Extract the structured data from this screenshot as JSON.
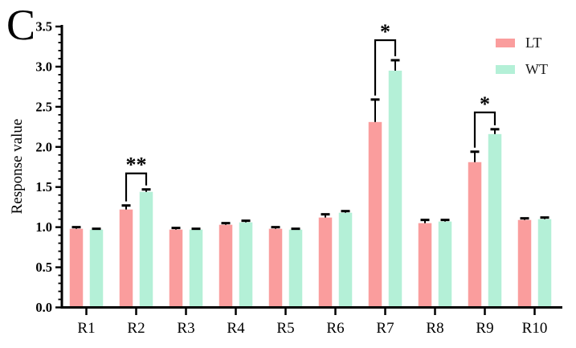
{
  "panel_label": "C",
  "legend": {
    "items": [
      {
        "label": "LT",
        "color": "#FA9D9D"
      },
      {
        "label": "WT",
        "color": "#B4F0D7"
      }
    ]
  },
  "chart_data": {
    "type": "bar",
    "title": "",
    "xlabel": "",
    "ylabel": "Response value",
    "ylim": [
      0,
      3.5
    ],
    "ytick_step": 0.5,
    "minor_tick_step": 0.1,
    "ytick_labels": [
      "0.0",
      "0.5",
      "1.0",
      "1.5",
      "2.0",
      "2.5",
      "3.0",
      "3.5"
    ],
    "grid": false,
    "legend_position": "top-right",
    "categories": [
      "R1",
      "R2",
      "R3",
      "R4",
      "R5",
      "R6",
      "R7",
      "R8",
      "R9",
      "R10"
    ],
    "series": [
      {
        "name": "LT",
        "color": "#FA9D9D",
        "values": [
          0.98,
          1.22,
          0.97,
          1.03,
          0.98,
          1.12,
          2.31,
          1.05,
          1.81,
          1.09
        ],
        "errors": [
          0.02,
          0.05,
          0.02,
          0.02,
          0.02,
          0.04,
          0.28,
          0.04,
          0.13,
          0.02
        ]
      },
      {
        "name": "WT",
        "color": "#B4F0D7",
        "values": [
          0.97,
          1.44,
          0.97,
          1.06,
          0.97,
          1.18,
          2.95,
          1.07,
          2.16,
          1.1
        ],
        "errors": [
          0.01,
          0.03,
          0.01,
          0.02,
          0.01,
          0.02,
          0.13,
          0.02,
          0.06,
          0.02
        ]
      }
    ],
    "annotations": [
      {
        "category": "R2",
        "label": "**",
        "bracket_top": 1.67
      },
      {
        "category": "R7",
        "label": "*",
        "bracket_top": 3.33
      },
      {
        "category": "R9",
        "label": "*",
        "bracket_top": 2.43
      }
    ]
  }
}
